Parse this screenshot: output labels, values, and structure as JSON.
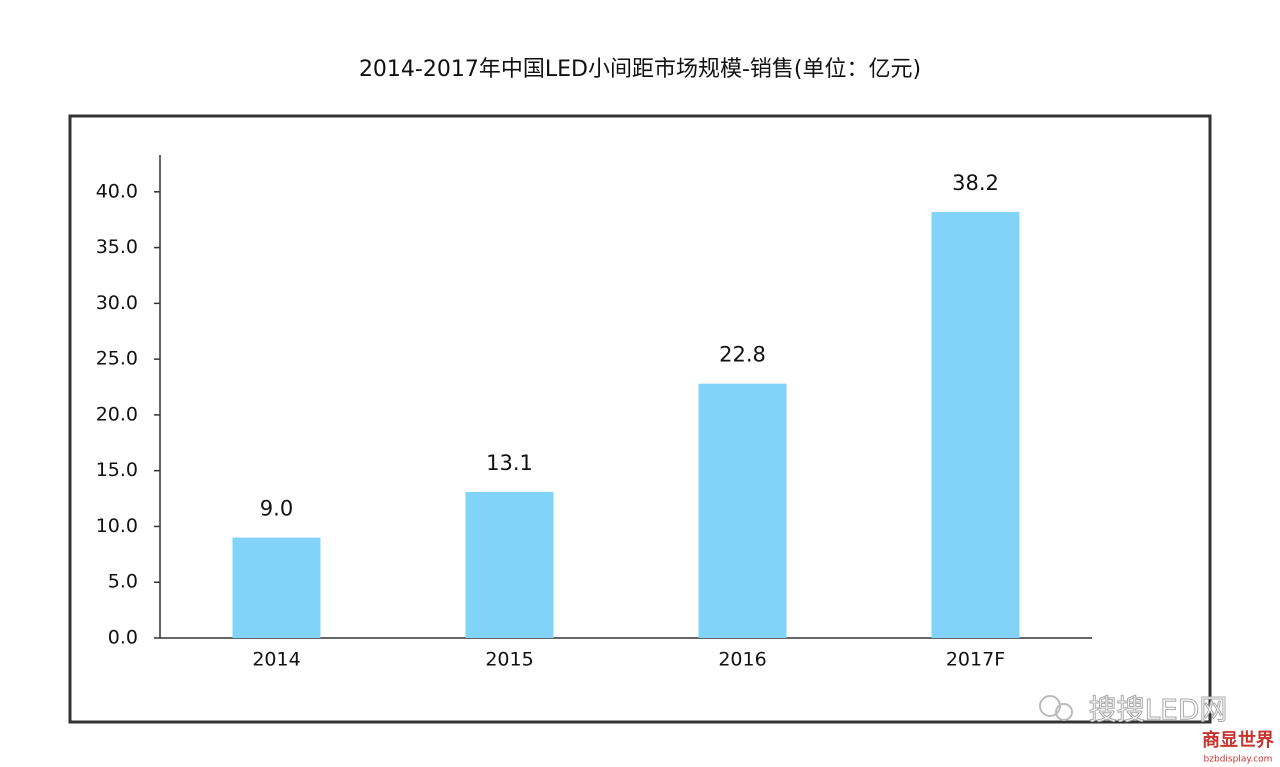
{
  "chart_data": {
    "type": "bar",
    "title": "2014-2017年中国LED小间距市场规模-销售(单位：亿元)",
    "categories": [
      "2014",
      "2015",
      "2016",
      "2017F"
    ],
    "values": [
      9.0,
      13.1,
      22.8,
      38.2
    ],
    "value_labels": [
      "9.0",
      "13.1",
      "22.8",
      "38.2"
    ],
    "color": "#81d3f8",
    "ylim": [
      0,
      43.3
    ],
    "yticks": [
      {
        "value": 0,
        "label": "0.0"
      },
      {
        "value": 5,
        "label": "5.0"
      },
      {
        "value": 10,
        "label": "10.0"
      },
      {
        "value": 15,
        "label": "15.0"
      },
      {
        "value": 20,
        "label": "20.0"
      },
      {
        "value": 25,
        "label": "25.0"
      },
      {
        "value": 30,
        "label": "30.0"
      },
      {
        "value": 35,
        "label": "35.0"
      },
      {
        "value": 40,
        "label": "40.0"
      }
    ],
    "grid": false,
    "watermarks": [
      "搜搜LED网",
      "商显世界",
      "bzbdisplay.com"
    ]
  }
}
